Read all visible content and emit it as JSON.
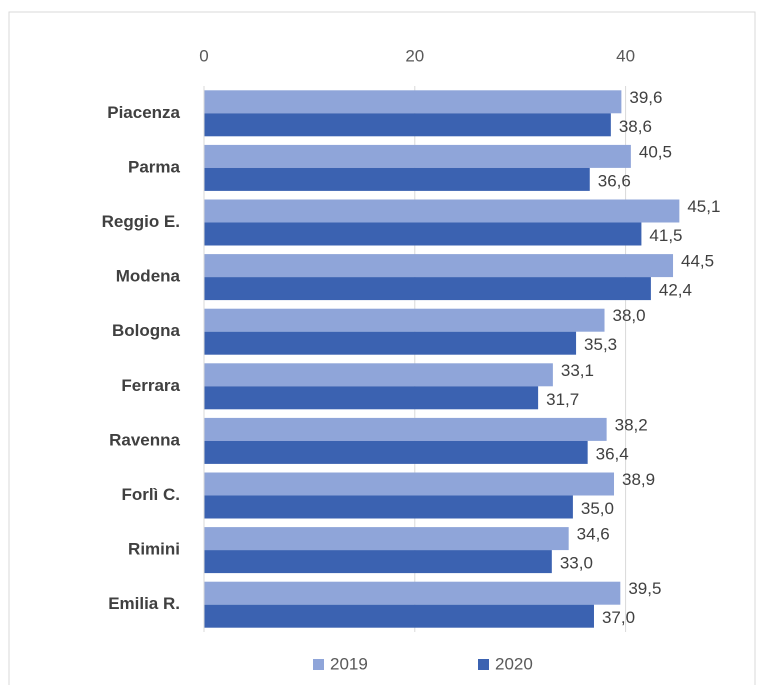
{
  "chart_data": {
    "type": "bar",
    "orientation": "horizontal",
    "categories": [
      "Piacenza",
      "Parma",
      "Reggio E.",
      "Modena",
      "Bologna",
      "Ferrara",
      "Ravenna",
      "Forlì C.",
      "Rimini",
      "Emilia R."
    ],
    "series": [
      {
        "name": "2019",
        "color": "#8fa5d9",
        "values": [
          39.6,
          40.5,
          45.1,
          44.5,
          38.0,
          33.1,
          38.2,
          38.9,
          34.6,
          39.5
        ],
        "value_labels": [
          "39,6",
          "40,5",
          "45,1",
          "44,5",
          "38,0",
          "33,1",
          "38,2",
          "38,9",
          "34,6",
          "39,5"
        ]
      },
      {
        "name": "2020",
        "color": "#3b62b1",
        "values": [
          38.6,
          36.6,
          41.5,
          42.4,
          35.3,
          31.7,
          36.4,
          35.0,
          33.0,
          37.0
        ],
        "value_labels": [
          "38,6",
          "36,6",
          "41,5",
          "42,4",
          "35,3",
          "31,7",
          "36,4",
          "35,0",
          "33,0",
          "37,0"
        ]
      }
    ],
    "xlim": [
      0,
      50
    ],
    "xticks": [
      0,
      20,
      40
    ],
    "grid": true,
    "legend": "bottom"
  }
}
